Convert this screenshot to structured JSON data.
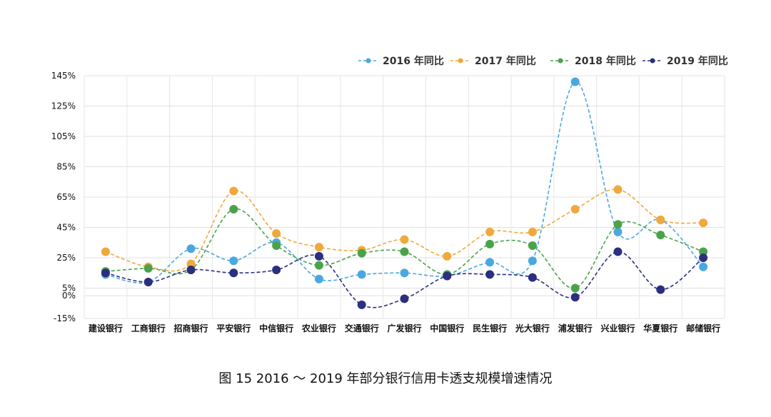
{
  "caption": "图 15 2016 ～ 2019 年部分银行信用卡透支规模增速情况",
  "chart_data": {
    "type": "line",
    "categories": [
      "建设银行",
      "工商银行",
      "招商银行",
      "平安银行",
      "中信银行",
      "农业银行",
      "交通银行",
      "广发银行",
      "中国银行",
      "民生银行",
      "光大银行",
      "浦发银行",
      "兴业银行",
      "华夏银行",
      "邮储银行"
    ],
    "y_ticks": [
      145,
      125,
      105,
      85,
      65,
      45,
      25,
      5,
      0,
      -15
    ],
    "y_tick_labels": [
      "145%",
      "125%",
      "105%",
      "85%",
      "65%",
      "45%",
      "25%",
      "5%",
      "0%",
      "-15%"
    ],
    "ylim": [
      -15,
      145
    ],
    "grid": true,
    "legend_position": "top-right",
    "series": [
      {
        "name": "2016 年同比",
        "color": "#4aa8e0",
        "values": [
          14,
          9,
          31,
          23,
          35,
          11,
          14,
          15,
          13,
          22,
          23,
          141,
          42,
          50,
          19
        ]
      },
      {
        "name": "2017 年同比",
        "color": "#f0a93c",
        "values": [
          29,
          19,
          21,
          69,
          41,
          32,
          30,
          37,
          26,
          42,
          42,
          57,
          70,
          50,
          48
        ]
      },
      {
        "name": "2018 年同比",
        "color": "#4aa34a",
        "values": [
          16,
          18,
          17,
          57,
          33,
          20,
          28,
          29,
          14,
          34,
          33,
          5,
          47,
          40,
          29
        ]
      },
      {
        "name": "2019 年同比",
        "color": "#2b2f7f",
        "values": [
          15,
          9,
          17,
          15,
          17,
          26,
          -6,
          -2,
          13,
          14,
          12,
          -1,
          29,
          4,
          25
        ]
      }
    ]
  }
}
